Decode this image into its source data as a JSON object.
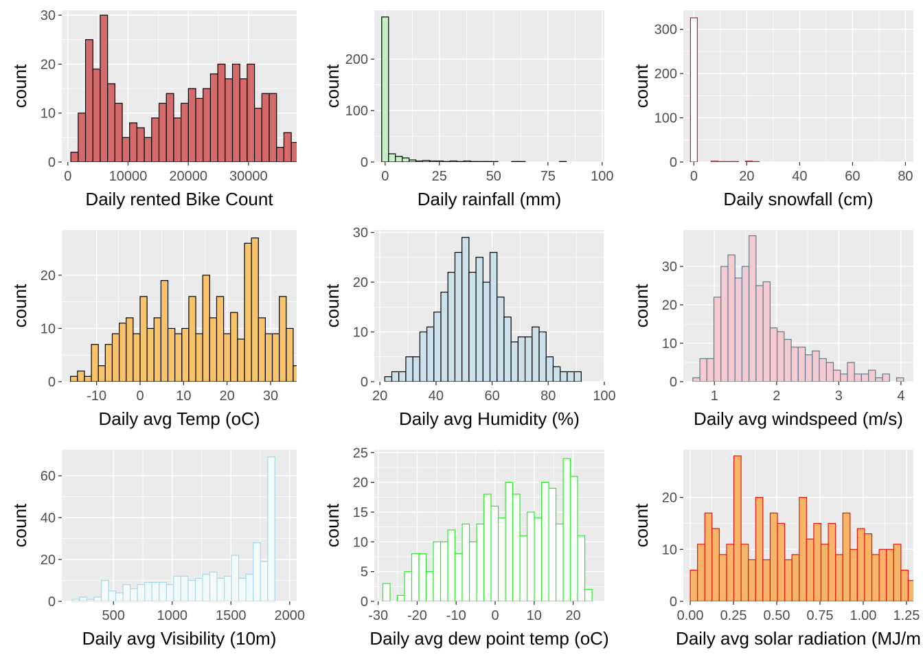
{
  "chart_data": [
    {
      "type": "bar",
      "style": "histogram",
      "xlabel": "Daily rented Bike Count",
      "ylabel": "count",
      "fill": "#d46a6a",
      "outline": "#000000",
      "xlim": [
        -1000,
        38000
      ],
      "ylim": [
        0,
        31
      ],
      "xticks": [
        0,
        10000,
        20000,
        30000
      ],
      "xtick_labels": [
        "0",
        "10000",
        "20000",
        "30000"
      ],
      "yticks": [
        0,
        10,
        20,
        30
      ],
      "ytick_labels": [
        "0",
        "10",
        "20",
        "30"
      ],
      "bin_width": 1220,
      "bin_start": 500,
      "values": [
        2,
        10,
        25,
        19,
        30,
        16,
        12,
        5,
        8,
        7,
        5,
        9,
        12,
        14,
        9,
        12,
        15,
        13,
        15,
        18,
        20,
        17,
        20,
        17,
        20,
        11,
        14,
        14,
        3,
        6,
        4,
        1
      ]
    },
    {
      "type": "bar",
      "style": "histogram",
      "xlabel": "Daily rainfall (mm)",
      "ylabel": "count",
      "fill": "#c7f0c7",
      "outline": "#000000",
      "xlim": [
        -5,
        101
      ],
      "ylim": [
        0,
        295
      ],
      "xticks": [
        0,
        25,
        50,
        75,
        100
      ],
      "xtick_labels": [
        "0",
        "25",
        "50",
        "75",
        "100"
      ],
      "yticks": [
        0,
        100,
        200
      ],
      "ytick_labels": [
        "0",
        "100",
        "200"
      ],
      "bin_width": 3.15,
      "bin_start": -1.575,
      "values": [
        282,
        16,
        11,
        8,
        4,
        2,
        3,
        2,
        2,
        1,
        2,
        1,
        2,
        1,
        1,
        1,
        1,
        0,
        0,
        1,
        1,
        0,
        0,
        0,
        0,
        0,
        1,
        0,
        0,
        0,
        0
      ]
    },
    {
      "type": "bar",
      "style": "histogram",
      "xlabel": "Daily snowfall (cm)",
      "ylabel": "count",
      "fill": "#ffffff",
      "outline": "#b22222",
      "xlim": [
        -4,
        83
      ],
      "ylim": [
        0,
        343
      ],
      "xticks": [
        0,
        20,
        40,
        60,
        80
      ],
      "xtick_labels": [
        "0",
        "20",
        "40",
        "60",
        "80"
      ],
      "yticks": [
        0,
        100,
        200,
        300
      ],
      "ytick_labels": [
        "0",
        "100",
        "200",
        "300"
      ],
      "bin_width": 2.6,
      "bin_start": -1.3,
      "values": [
        326,
        0,
        0,
        2,
        1,
        1,
        1,
        0,
        2,
        1,
        0,
        0,
        0,
        0,
        0,
        0,
        0,
        0,
        0,
        0,
        0,
        0,
        0,
        0,
        0,
        0,
        0,
        0,
        0,
        0,
        0
      ]
    },
    {
      "type": "bar",
      "style": "histogram",
      "xlabel": "Daily avg Temp (oC)",
      "ylabel": "count",
      "fill": "#f7c46c",
      "outline": "#000000",
      "xlim": [
        -18,
        36
      ],
      "ylim": [
        0,
        28.5
      ],
      "xticks": [
        -10,
        0,
        10,
        20,
        30
      ],
      "xtick_labels": [
        "-10",
        "0",
        "10",
        "20",
        "30"
      ],
      "yticks": [
        0,
        10,
        20
      ],
      "ytick_labels": [
        "0",
        "10",
        "20"
      ],
      "bin_width": 1.6,
      "bin_start": -16,
      "values": [
        1,
        2,
        1,
        7,
        3,
        7,
        9,
        11,
        12,
        9,
        16,
        10,
        12,
        19,
        10,
        9,
        10,
        16,
        9,
        20,
        12,
        16,
        9,
        13,
        8,
        26,
        27,
        12,
        9,
        9,
        16,
        10,
        3
      ]
    },
    {
      "type": "bar",
      "style": "histogram",
      "xlabel": "Daily avg Humidity (%)",
      "ylabel": "count",
      "fill": "#cde1eb",
      "outline": "#000000",
      "xlim": [
        18,
        100
      ],
      "ylim": [
        0,
        30.5
      ],
      "xticks": [
        20,
        40,
        60,
        80,
        100
      ],
      "xtick_labels": [
        "20",
        "40",
        "60",
        "80",
        "100"
      ],
      "yticks": [
        0,
        10,
        20,
        30
      ],
      "ytick_labels": [
        "0",
        "10",
        "20",
        "30"
      ],
      "bin_width": 2.5,
      "bin_start": 21.75,
      "values": [
        1,
        2,
        2,
        5,
        5,
        10,
        11,
        14,
        18,
        22,
        26,
        29,
        22,
        25,
        20,
        26,
        17,
        13,
        8,
        9,
        9,
        11,
        10,
        5,
        3,
        2,
        2,
        2
      ]
    },
    {
      "type": "bar",
      "style": "histogram",
      "xlabel": "Daily avg windspeed (m/s)",
      "ylabel": "count",
      "fill": "#f4cbd3",
      "outline": "#617a89",
      "xlim": [
        0.5,
        4.2
      ],
      "ylim": [
        0,
        39.5
      ],
      "xticks": [
        1,
        2,
        3,
        4
      ],
      "xtick_labels": [
        "1",
        "2",
        "3",
        "4"
      ],
      "yticks": [
        0,
        10,
        20,
        30
      ],
      "ytick_labels": [
        "0",
        "10",
        "20",
        "30"
      ],
      "bin_width": 0.113,
      "bin_start": 0.653,
      "values": [
        1,
        6,
        6,
        22,
        30,
        33,
        27,
        30,
        38,
        25,
        26,
        14,
        13,
        11,
        9,
        9,
        7,
        8,
        6,
        5,
        3,
        2,
        5,
        2,
        2,
        3,
        1,
        2,
        0,
        1
      ]
    },
    {
      "type": "bar",
      "style": "histogram",
      "xlabel": "Daily avg Visibility (10m)",
      "ylabel": "count",
      "fill": "#f2fafc",
      "outline": "#a8d9ec",
      "xlim": [
        60,
        2060
      ],
      "ylim": [
        0,
        72.5
      ],
      "xticks": [
        500,
        1000,
        1500,
        2000
      ],
      "xtick_labels": [
        "500",
        "1000",
        "1500",
        "2000"
      ],
      "yticks": [
        0,
        20,
        40,
        60
      ],
      "ytick_labels": [
        "0",
        "20",
        "40",
        "60"
      ],
      "bin_width": 61.6,
      "bin_start": 150,
      "values": [
        1,
        2,
        1,
        2,
        10,
        5,
        4,
        8,
        6,
        8,
        9,
        9,
        9,
        8,
        12,
        12,
        10,
        11,
        13,
        14,
        11,
        12,
        22,
        11,
        13,
        28,
        19,
        69
      ]
    },
    {
      "type": "bar",
      "style": "histogram",
      "xlabel": "Daily avg dew point temp (oC)",
      "ylabel": "count",
      "fill": "#ffffff",
      "outline": "#22ee22",
      "xlim": [
        -31,
        28
      ],
      "ylim": [
        0,
        25.5
      ],
      "xticks": [
        -30,
        -20,
        -10,
        0,
        10,
        20
      ],
      "xtick_labels": [
        "-30",
        "-20",
        "-10",
        "0",
        "10",
        "20"
      ],
      "yticks": [
        0,
        5,
        10,
        15,
        20,
        25
      ],
      "ytick_labels": [
        "0",
        "5",
        "10",
        "15",
        "20",
        "25"
      ],
      "bin_width": 1.85,
      "bin_start": -28.8,
      "values": [
        3,
        0,
        1,
        5,
        8,
        8,
        5,
        10,
        10,
        12,
        8,
        13,
        10,
        13,
        18,
        16,
        14,
        20,
        18,
        11,
        15,
        14,
        20,
        19,
        13,
        24,
        21,
        11,
        2
      ]
    },
    {
      "type": "bar",
      "style": "histogram",
      "xlabel": "Daily avg solar radiation (MJ/m",
      "ylabel": "count",
      "fill": "#f7b56a",
      "outline": "#ee1111",
      "xlim": [
        -0.04,
        1.29
      ],
      "ylim": [
        0,
        29.2
      ],
      "xticks": [
        0.0,
        0.25,
        0.5,
        0.75,
        1.0,
        1.25
      ],
      "xtick_labels": [
        "0.00",
        "0.25",
        "0.50",
        "0.75",
        "1.00",
        "1.25"
      ],
      "yticks": [
        0,
        10,
        20
      ],
      "ytick_labels": [
        "0",
        "10",
        "20"
      ],
      "bin_width": 0.042,
      "bin_start": 0.0,
      "values": [
        6,
        11,
        17,
        14,
        9,
        11,
        28,
        11,
        8,
        20,
        8,
        17,
        15,
        8,
        9,
        20,
        12,
        15,
        11,
        15,
        9,
        17,
        10,
        14,
        13,
        9,
        10,
        10,
        11,
        6,
        4,
        2
      ]
    }
  ]
}
